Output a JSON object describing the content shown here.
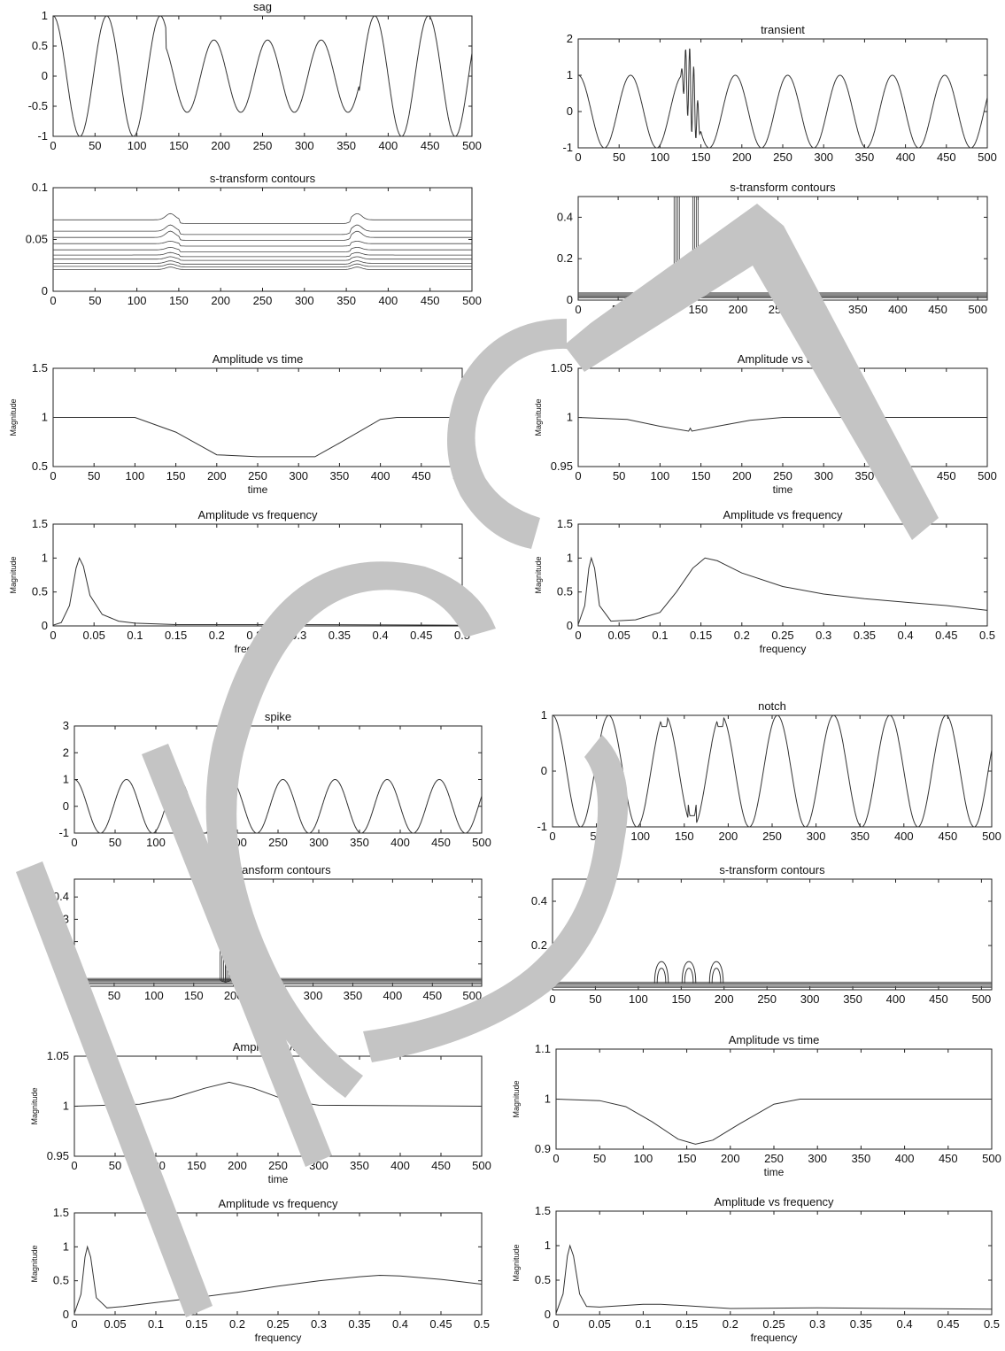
{
  "watermark": {
    "text": "ICS",
    "color": "#c4c4c4"
  },
  "chart_data": [
    {
      "type": "line",
      "title": "sag",
      "xlim": [
        0,
        500
      ],
      "ylim": [
        -1,
        1
      ],
      "xticks": [
        0,
        50,
        100,
        150,
        200,
        250,
        300,
        350,
        400,
        450,
        500
      ],
      "yticks": [
        -1,
        -0.5,
        0,
        0.5,
        1
      ],
      "series": [
        {
          "fn": "sag",
          "amplitude_in": 1,
          "amplitude_sag": 0.6,
          "sag_start": 135,
          "sag_end": 365,
          "samples_per_cycle": 64
        }
      ]
    },
    {
      "type": "line",
      "title": "transient",
      "xlim": [
        0,
        500
      ],
      "ylim": [
        -1,
        2
      ],
      "xticks": [
        0,
        50,
        100,
        150,
        200,
        250,
        300,
        350,
        400,
        450,
        500
      ],
      "yticks": [
        -1,
        0,
        1,
        2
      ],
      "series": [
        {
          "fn": "transient",
          "start": 125,
          "end": 150,
          "peak": 1.8,
          "samples_per_cycle": 64
        }
      ]
    },
    {
      "type": "contour",
      "title": "s-transform contours",
      "xlim": [
        0,
        500
      ],
      "ylim": [
        0,
        0.1
      ],
      "xticks": [
        0,
        50,
        100,
        150,
        200,
        250,
        300,
        350,
        400,
        450,
        500
      ],
      "yticks": [
        0,
        0.05,
        0.1
      ],
      "series": [
        {
          "fn": "contour_sag",
          "levels": [
            0.021,
            0.024,
            0.027,
            0.031,
            0.035,
            0.04,
            0.046,
            0.052,
            0.058,
            0.069
          ],
          "bumps": [
            140,
            363
          ]
        }
      ]
    },
    {
      "type": "contour",
      "title": "s-transform contours",
      "xlim": [
        0,
        512
      ],
      "ylim": [
        0,
        0.5
      ],
      "xticks": [
        0,
        50,
        100,
        150,
        200,
        250,
        300,
        350,
        400,
        450,
        500
      ],
      "yticks": [
        0,
        0.2,
        0.4
      ],
      "series": [
        {
          "fn": "contour_burst",
          "bursts": [
            [
              120,
              150
            ]
          ],
          "top": 0.5,
          "band": [
            0.01,
            0.035
          ]
        }
      ]
    },
    {
      "type": "line",
      "title": "Amplitude vs time",
      "xlabel": "time",
      "ylabel": "Magnitude",
      "xlim": [
        0,
        500
      ],
      "ylim": [
        0.5,
        1.5
      ],
      "xticks": [
        0,
        50,
        100,
        150,
        200,
        250,
        300,
        350,
        400,
        450,
        500
      ],
      "yticks": [
        0.5,
        1,
        1.5
      ],
      "series": [
        {
          "points": [
            [
              0,
              1
            ],
            [
              100,
              1
            ],
            [
              150,
              0.85
            ],
            [
              200,
              0.62
            ],
            [
              250,
              0.6
            ],
            [
              320,
              0.6
            ],
            [
              350,
              0.74
            ],
            [
              400,
              0.98
            ],
            [
              420,
              1
            ],
            [
              500,
              1
            ]
          ]
        }
      ]
    },
    {
      "type": "line",
      "title": "Amplitude vs time",
      "xlabel": "time",
      "ylabel": "Magnitude",
      "xlim": [
        0,
        500
      ],
      "ylim": [
        0.95,
        1.05
      ],
      "xticks": [
        0,
        50,
        100,
        150,
        200,
        250,
        300,
        350,
        400,
        450,
        500
      ],
      "yticks": [
        0.95,
        1,
        1.05
      ],
      "series": [
        {
          "points": [
            [
              0,
              1
            ],
            [
              60,
              0.998
            ],
            [
              100,
              0.991
            ],
            [
              135,
              0.986
            ],
            [
              137,
              0.989
            ],
            [
              139,
              0.986
            ],
            [
              170,
              0.991
            ],
            [
              210,
              0.997
            ],
            [
              250,
              1
            ],
            [
              500,
              1
            ]
          ]
        }
      ]
    },
    {
      "type": "line",
      "title": "Amplitude vs frequency",
      "xlabel": "frequency",
      "ylabel": "Magnitude",
      "xlim": [
        0,
        0.5
      ],
      "ylim": [
        0,
        1.5
      ],
      "xticks": [
        0,
        0.05,
        0.1,
        0.15,
        0.2,
        0.25,
        0.3,
        0.35,
        0.4,
        0.45,
        0.5
      ],
      "yticks": [
        0,
        0.5,
        1,
        1.5
      ],
      "series": [
        {
          "points": [
            [
              0,
              0.01
            ],
            [
              0.01,
              0.05
            ],
            [
              0.02,
              0.3
            ],
            [
              0.028,
              0.85
            ],
            [
              0.032,
              1.0
            ],
            [
              0.037,
              0.88
            ],
            [
              0.045,
              0.45
            ],
            [
              0.06,
              0.17
            ],
            [
              0.08,
              0.07
            ],
            [
              0.1,
              0.04
            ],
            [
              0.15,
              0.02
            ],
            [
              0.3,
              0.02
            ],
            [
              0.5,
              0.01
            ]
          ]
        }
      ]
    },
    {
      "type": "line",
      "title": "Amplitude vs frequency",
      "xlabel": "frequency",
      "ylabel": "Magnitude",
      "xlim": [
        0,
        0.5
      ],
      "ylim": [
        0,
        1.5
      ],
      "xticks": [
        0,
        0.05,
        0.1,
        0.15,
        0.2,
        0.25,
        0.3,
        0.35,
        0.4,
        0.45,
        0.5
      ],
      "yticks": [
        0,
        0.5,
        1,
        1.5
      ],
      "series": [
        {
          "points": [
            [
              0,
              0.02
            ],
            [
              0.008,
              0.3
            ],
            [
              0.013,
              0.85
            ],
            [
              0.016,
              1.0
            ],
            [
              0.02,
              0.85
            ],
            [
              0.026,
              0.3
            ],
            [
              0.04,
              0.07
            ],
            [
              0.07,
              0.09
            ],
            [
              0.1,
              0.2
            ],
            [
              0.12,
              0.5
            ],
            [
              0.14,
              0.85
            ],
            [
              0.155,
              1.0
            ],
            [
              0.17,
              0.96
            ],
            [
              0.2,
              0.78
            ],
            [
              0.25,
              0.58
            ],
            [
              0.3,
              0.47
            ],
            [
              0.35,
              0.4
            ],
            [
              0.4,
              0.35
            ],
            [
              0.45,
              0.3
            ],
            [
              0.5,
              0.23
            ]
          ]
        }
      ]
    },
    {
      "type": "line",
      "title": "spike",
      "xlim": [
        0,
        500
      ],
      "ylim": [
        -1,
        3
      ],
      "xticks": [
        0,
        50,
        100,
        150,
        200,
        250,
        300,
        350,
        400,
        450,
        500
      ],
      "yticks": [
        -1,
        0,
        1,
        2,
        3
      ],
      "series": [
        {
          "fn": "spike",
          "center": 191,
          "peak": 2.3,
          "samples_per_cycle": 64
        }
      ]
    },
    {
      "type": "line",
      "title": "notch",
      "xlim": [
        0,
        500
      ],
      "ylim": [
        -1,
        1
      ],
      "xticks": [
        0,
        50,
        100,
        150,
        200,
        250,
        300,
        350,
        400,
        450,
        500
      ],
      "yticks": [
        -1,
        0,
        1
      ],
      "series": [
        {
          "fn": "notch",
          "centers": [
            127,
            159,
            191
          ],
          "depth": 0.2,
          "samples_per_cycle": 64
        }
      ]
    },
    {
      "type": "contour",
      "title": "s-transform contours",
      "xlim": [
        0,
        512
      ],
      "ylim": [
        0,
        0.48
      ],
      "xticks": [
        0,
        50,
        100,
        150,
        200,
        250,
        300,
        350,
        400,
        450,
        500
      ],
      "yticks": [
        0,
        0.1,
        0.2,
        0.3,
        0.4
      ],
      "series": [
        {
          "fn": "contour_burst",
          "bursts": [
            [
              183,
              197
            ]
          ],
          "top": 0.48,
          "band": [
            0.01,
            0.035
          ]
        }
      ]
    },
    {
      "type": "contour",
      "title": "s-transform contours",
      "xlim": [
        0,
        512
      ],
      "ylim": [
        0,
        0.5
      ],
      "xticks": [
        0,
        50,
        100,
        150,
        200,
        250,
        300,
        350,
        400,
        450,
        500
      ],
      "yticks": [
        0,
        0.2,
        0.4
      ],
      "series": [
        {
          "fn": "contour_notch",
          "lobes": [
            127,
            159,
            191
          ],
          "lobe_height": 0.16,
          "band": [
            0.01,
            0.035
          ]
        }
      ]
    },
    {
      "type": "line",
      "title": "Amplitude vs time",
      "xlabel": "time",
      "ylabel": "Magnitude",
      "xlim": [
        0,
        500
      ],
      "ylim": [
        0.95,
        1.05
      ],
      "xticks": [
        0,
        50,
        100,
        150,
        200,
        250,
        300,
        350,
        400,
        450,
        500
      ],
      "yticks": [
        0.95,
        1,
        1.05
      ],
      "series": [
        {
          "points": [
            [
              0,
              1
            ],
            [
              80,
              1.002
            ],
            [
              120,
              1.008
            ],
            [
              160,
              1.018
            ],
            [
              190,
              1.024
            ],
            [
              220,
              1.018
            ],
            [
              260,
              1.006
            ],
            [
              300,
              1.001
            ],
            [
              500,
              1
            ]
          ]
        }
      ]
    },
    {
      "type": "line",
      "title": "Amplitude vs time",
      "xlabel": "time",
      "ylabel": "Magnitude",
      "xlim": [
        0,
        500
      ],
      "ylim": [
        0.9,
        1.1
      ],
      "xticks": [
        0,
        50,
        100,
        150,
        200,
        250,
        300,
        350,
        400,
        450,
        500
      ],
      "yticks": [
        0.9,
        1,
        1.1
      ],
      "series": [
        {
          "points": [
            [
              0,
              1
            ],
            [
              50,
              0.997
            ],
            [
              80,
              0.985
            ],
            [
              110,
              0.955
            ],
            [
              140,
              0.92
            ],
            [
              160,
              0.91
            ],
            [
              180,
              0.918
            ],
            [
              210,
              0.95
            ],
            [
              250,
              0.99
            ],
            [
              280,
              1
            ],
            [
              500,
              1
            ]
          ]
        }
      ]
    },
    {
      "type": "line",
      "title": "Amplitude vs frequency",
      "xlabel": "frequency",
      "ylabel": "Magnitude",
      "xlim": [
        0,
        0.5
      ],
      "ylim": [
        0,
        1.5
      ],
      "xticks": [
        0,
        0.05,
        0.1,
        0.15,
        0.2,
        0.25,
        0.3,
        0.35,
        0.4,
        0.45,
        0.5
      ],
      "yticks": [
        0,
        0.5,
        1,
        1.5
      ],
      "series": [
        {
          "points": [
            [
              0,
              0.02
            ],
            [
              0.008,
              0.3
            ],
            [
              0.013,
              0.85
            ],
            [
              0.016,
              1.0
            ],
            [
              0.02,
              0.85
            ],
            [
              0.027,
              0.25
            ],
            [
              0.04,
              0.1
            ],
            [
              0.06,
              0.12
            ],
            [
              0.1,
              0.18
            ],
            [
              0.15,
              0.25
            ],
            [
              0.2,
              0.33
            ],
            [
              0.25,
              0.42
            ],
            [
              0.3,
              0.5
            ],
            [
              0.35,
              0.56
            ],
            [
              0.375,
              0.58
            ],
            [
              0.4,
              0.57
            ],
            [
              0.45,
              0.52
            ],
            [
              0.5,
              0.45
            ]
          ]
        }
      ]
    },
    {
      "type": "line",
      "title": "Amplitude vs frequency",
      "xlabel": "frequency",
      "ylabel": "Magnitude",
      "xlim": [
        0,
        0.5
      ],
      "ylim": [
        0,
        1.5
      ],
      "xticks": [
        0,
        0.05,
        0.1,
        0.15,
        0.2,
        0.25,
        0.3,
        0.35,
        0.4,
        0.45,
        0.5
      ],
      "yticks": [
        0,
        0.5,
        1,
        1.5
      ],
      "series": [
        {
          "points": [
            [
              0,
              0.02
            ],
            [
              0.008,
              0.3
            ],
            [
              0.013,
              0.85
            ],
            [
              0.016,
              1.0
            ],
            [
              0.02,
              0.85
            ],
            [
              0.027,
              0.3
            ],
            [
              0.035,
              0.12
            ],
            [
              0.05,
              0.11
            ],
            [
              0.1,
              0.15
            ],
            [
              0.12,
              0.15
            ],
            [
              0.15,
              0.13
            ],
            [
              0.2,
              0.09
            ],
            [
              0.3,
              0.1
            ],
            [
              0.4,
              0.09
            ],
            [
              0.5,
              0.08
            ]
          ]
        }
      ]
    }
  ]
}
